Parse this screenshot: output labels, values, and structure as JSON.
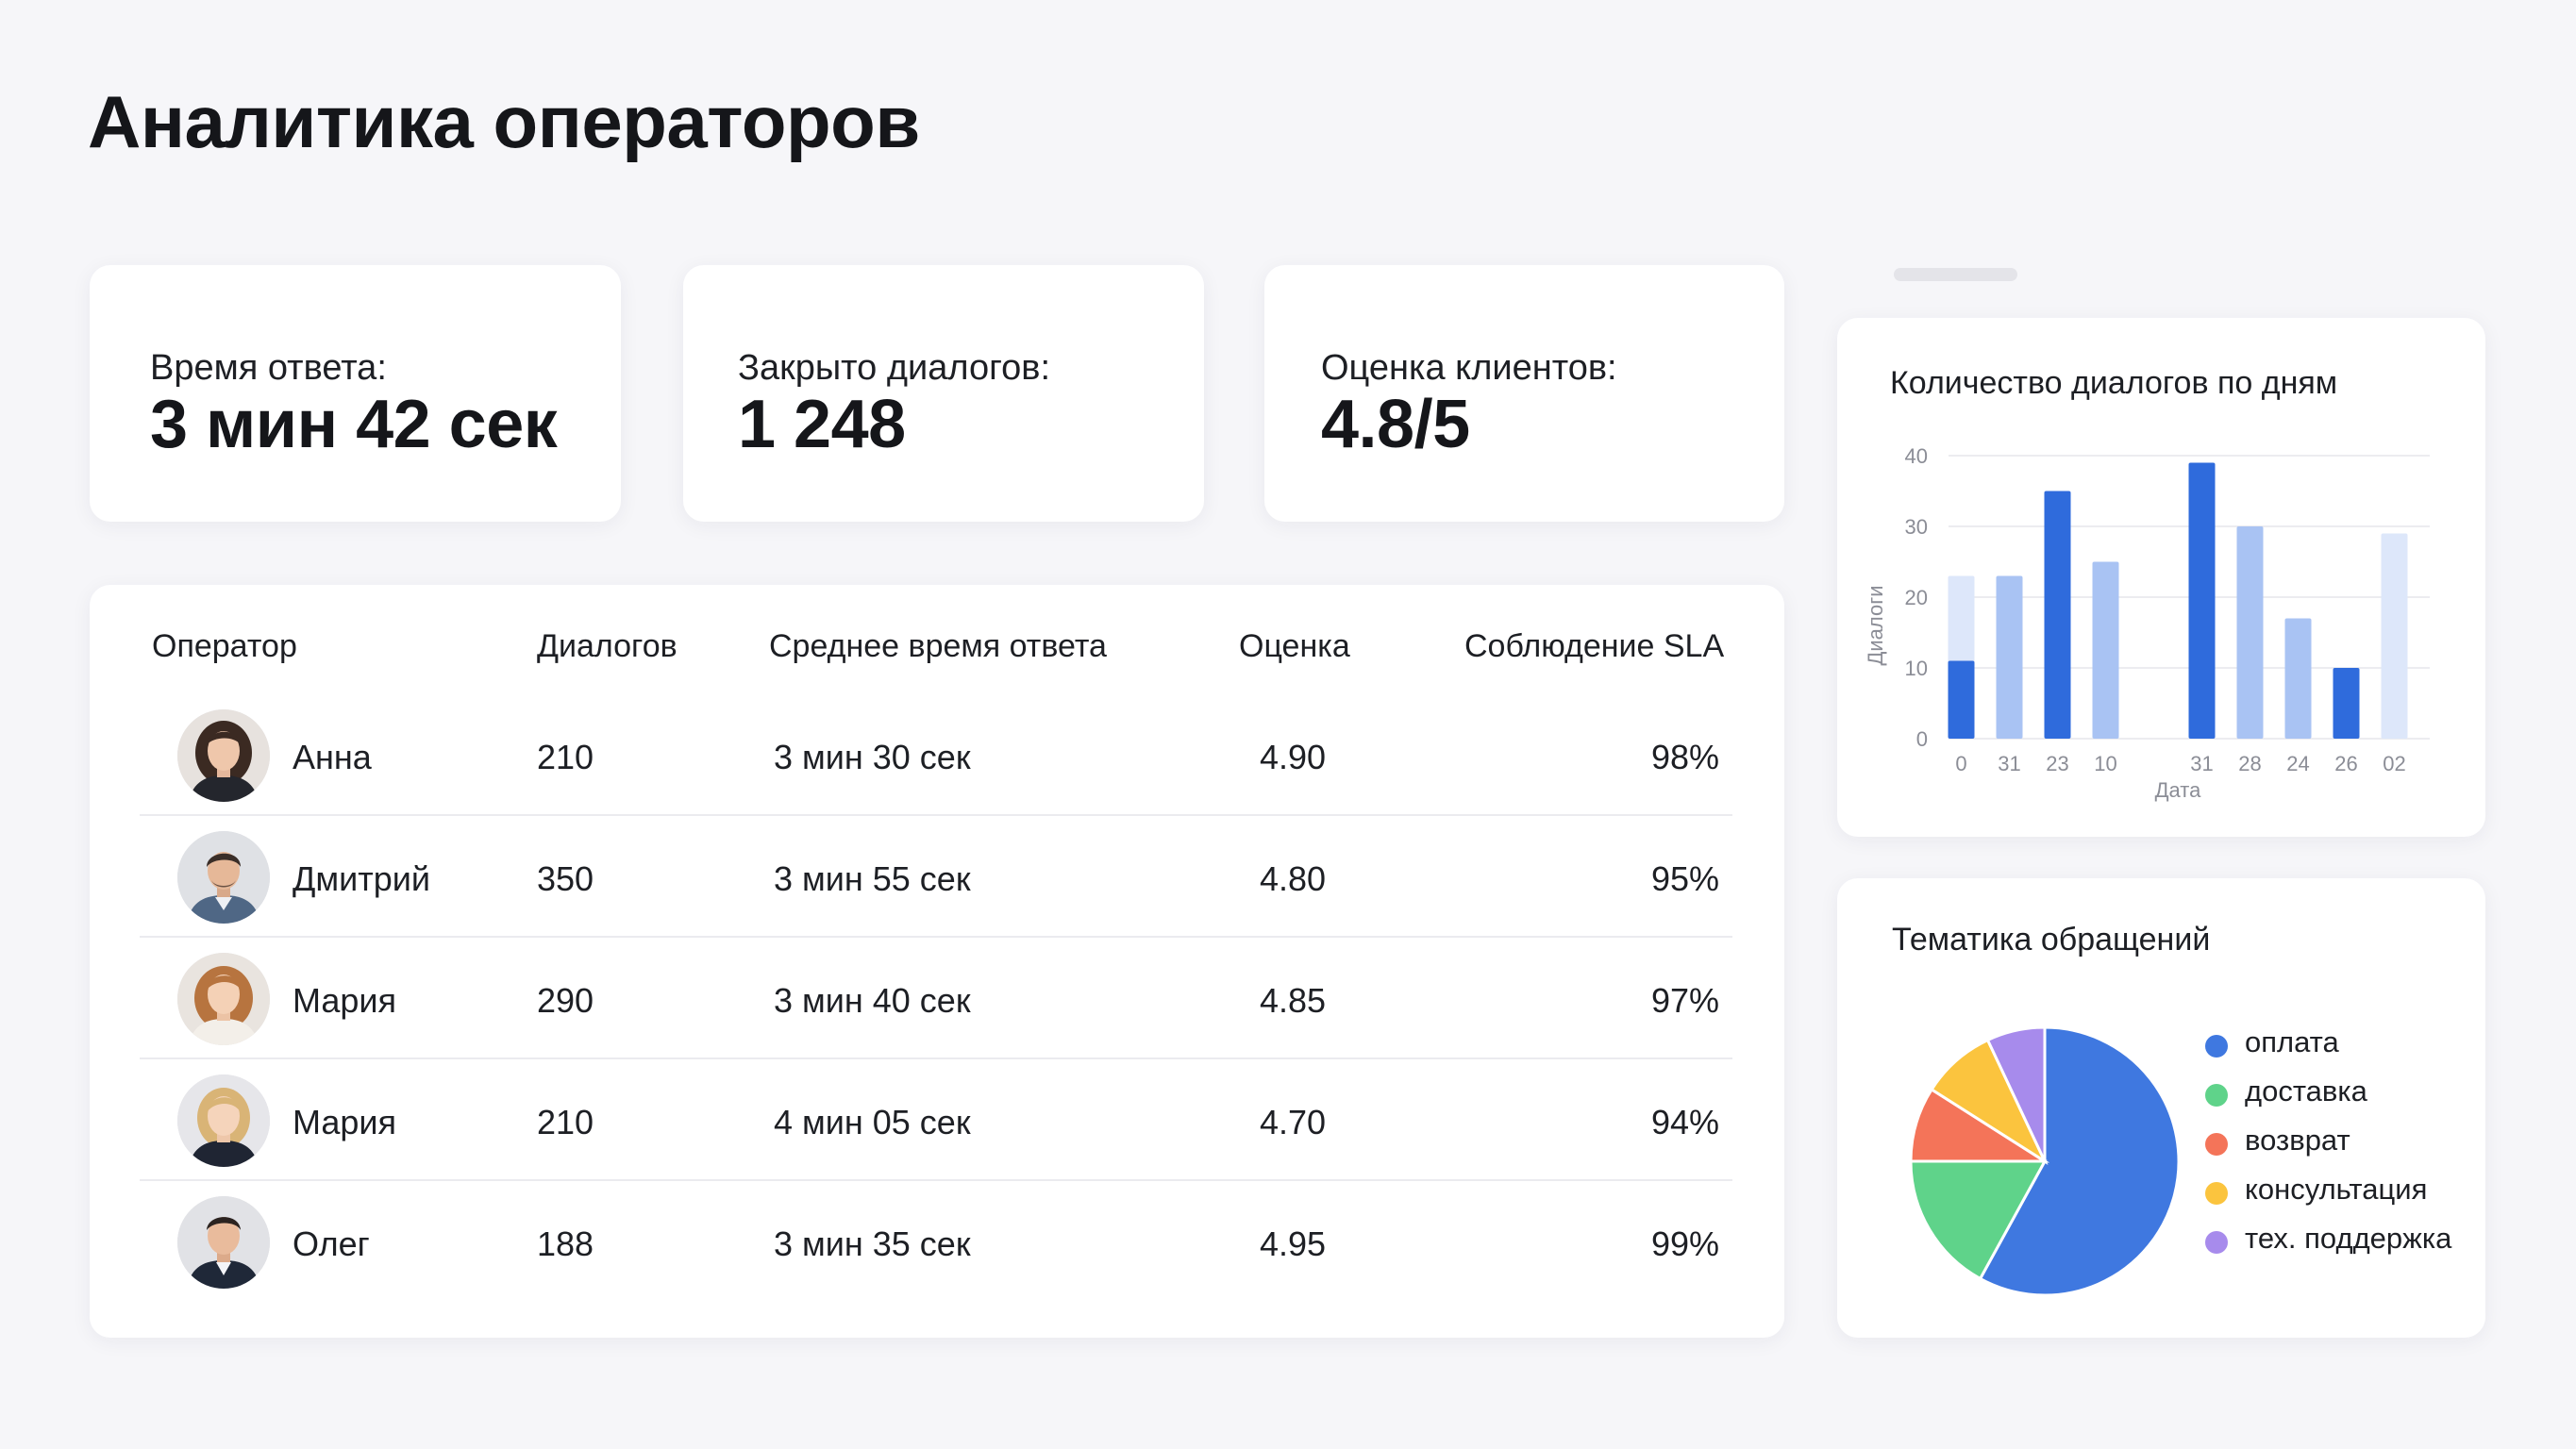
{
  "page": {
    "title": "Аналитика операторов"
  },
  "kpis": [
    {
      "label": "Время ответа:",
      "value": "3 мин 42 сек"
    },
    {
      "label": "Закрыто диалогов:",
      "value": "1 248"
    },
    {
      "label": "Оценка клиентов:",
      "value": "4.8/5"
    }
  ],
  "table": {
    "headers": [
      "Оператор",
      "Диалогов",
      "Среднее время ответа",
      "Оценка",
      "Соблюдение SLA"
    ],
    "rows": [
      {
        "name": "Анна",
        "dialogs": "210",
        "avg_time": "3 мин 30 сек",
        "rating": "4.90",
        "sla": "98%"
      },
      {
        "name": "Дмитрий",
        "dialogs": "350",
        "avg_time": "3 мин 55 сек",
        "rating": "4.80",
        "sla": "95%"
      },
      {
        "name": "Мария",
        "dialogs": "290",
        "avg_time": "3 мин 40 сек",
        "rating": "4.85",
        "sla": "97%"
      },
      {
        "name": "Мария",
        "dialogs": "210",
        "avg_time": "4 мин 05 сек",
        "rating": "4.70",
        "sla": "94%"
      },
      {
        "name": "Олег",
        "dialogs": "188",
        "avg_time": "3 мин 35 сек",
        "rating": "4.95",
        "sla": "99%"
      }
    ]
  },
  "chart_data": [
    {
      "type": "bar",
      "title": "Количество диалогов по дням",
      "xlabel": "Дата",
      "ylabel": "Диалоги",
      "ylim": [
        0,
        40
      ],
      "yticks": [
        0,
        10,
        20,
        30,
        40
      ],
      "categories": [
        "0",
        "31",
        "23",
        "10",
        "",
        "31",
        "28",
        "24",
        "26",
        "02"
      ],
      "values": [
        11,
        23,
        35,
        25,
        0,
        39,
        30,
        17,
        10,
        29
      ],
      "background_values": [
        23,
        null,
        null,
        null,
        null,
        null,
        null,
        null,
        null,
        null
      ],
      "shades": [
        "dark",
        "light",
        "dark",
        "light",
        "none",
        "dark",
        "light",
        "light",
        "dark",
        "pale"
      ],
      "colors": {
        "dark": "#2f6bdc",
        "light": "#a9c3f3",
        "pale": "#dde7fa"
      },
      "grid": true,
      "legend": "none"
    },
    {
      "type": "pie",
      "title": "Тематика обращений",
      "labels": [
        "оплата",
        "доставка",
        "возврат",
        "консультация",
        "тех. поддержка"
      ],
      "values": [
        58,
        17,
        9,
        9,
        7
      ],
      "colors": [
        "#3f78e0",
        "#5fd38a",
        "#f47459",
        "#fbc43e",
        "#a78bec"
      ],
      "legend": "right"
    }
  ]
}
